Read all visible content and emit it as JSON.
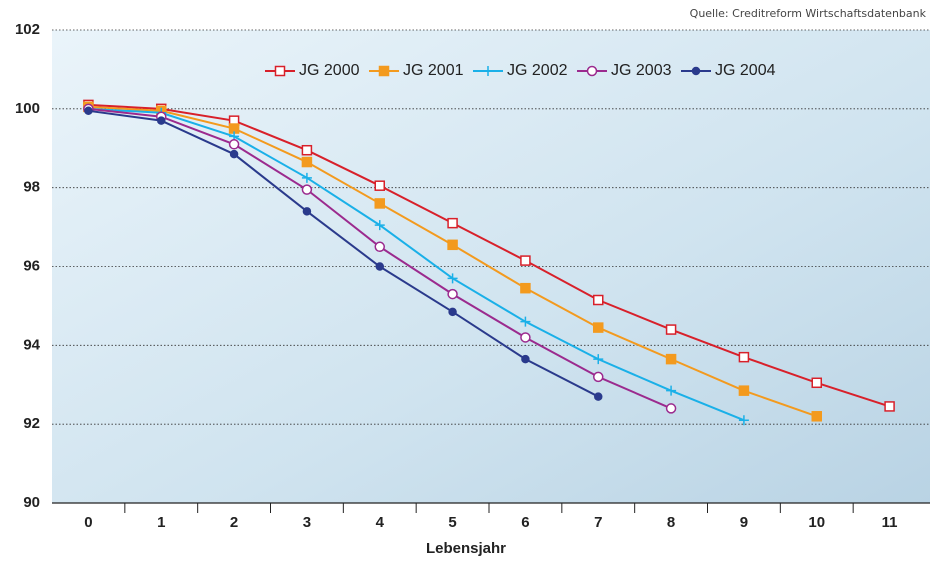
{
  "chart_data": {
    "type": "line",
    "source": "Quelle: Creditreform Wirtschaftsdatenbank",
    "x_label": "Lebensjahr",
    "categories": [
      "0",
      "1",
      "2",
      "3",
      "4",
      "5",
      "6",
      "7",
      "8",
      "9",
      "10",
      "11"
    ],
    "ylim": [
      90,
      102
    ],
    "yticks": [
      90,
      92,
      94,
      96,
      98,
      100,
      102
    ],
    "grid": true,
    "legend": "top",
    "series": [
      {
        "name": "JG 2000",
        "color": "#d8202a",
        "marker": "square-open",
        "values": [
          100.1,
          100.0,
          99.7,
          98.95,
          98.05,
          97.1,
          96.15,
          95.15,
          94.4,
          93.7,
          93.05,
          92.45
        ]
      },
      {
        "name": "JG 2001",
        "color": "#f39a1e",
        "marker": "square",
        "values": [
          100.05,
          99.95,
          99.5,
          98.65,
          97.6,
          96.55,
          95.45,
          94.45,
          93.65,
          92.85,
          92.2,
          null
        ]
      },
      {
        "name": "JG 2002",
        "color": "#1ab0e8",
        "marker": "plus",
        "values": [
          100.0,
          99.9,
          99.3,
          98.25,
          97.05,
          95.7,
          94.6,
          93.65,
          92.85,
          92.1,
          null,
          null
        ]
      },
      {
        "name": "JG 2003",
        "color": "#9b2a8e",
        "marker": "circle-open",
        "values": [
          100.0,
          99.8,
          99.1,
          97.95,
          96.5,
          95.3,
          94.2,
          93.2,
          92.4,
          null,
          null,
          null
        ]
      },
      {
        "name": "JG 2004",
        "color": "#2a3a8c",
        "marker": "circle",
        "values": [
          99.95,
          99.7,
          98.85,
          97.4,
          96.0,
          94.85,
          93.65,
          92.7,
          null,
          null,
          null,
          null
        ]
      }
    ]
  }
}
